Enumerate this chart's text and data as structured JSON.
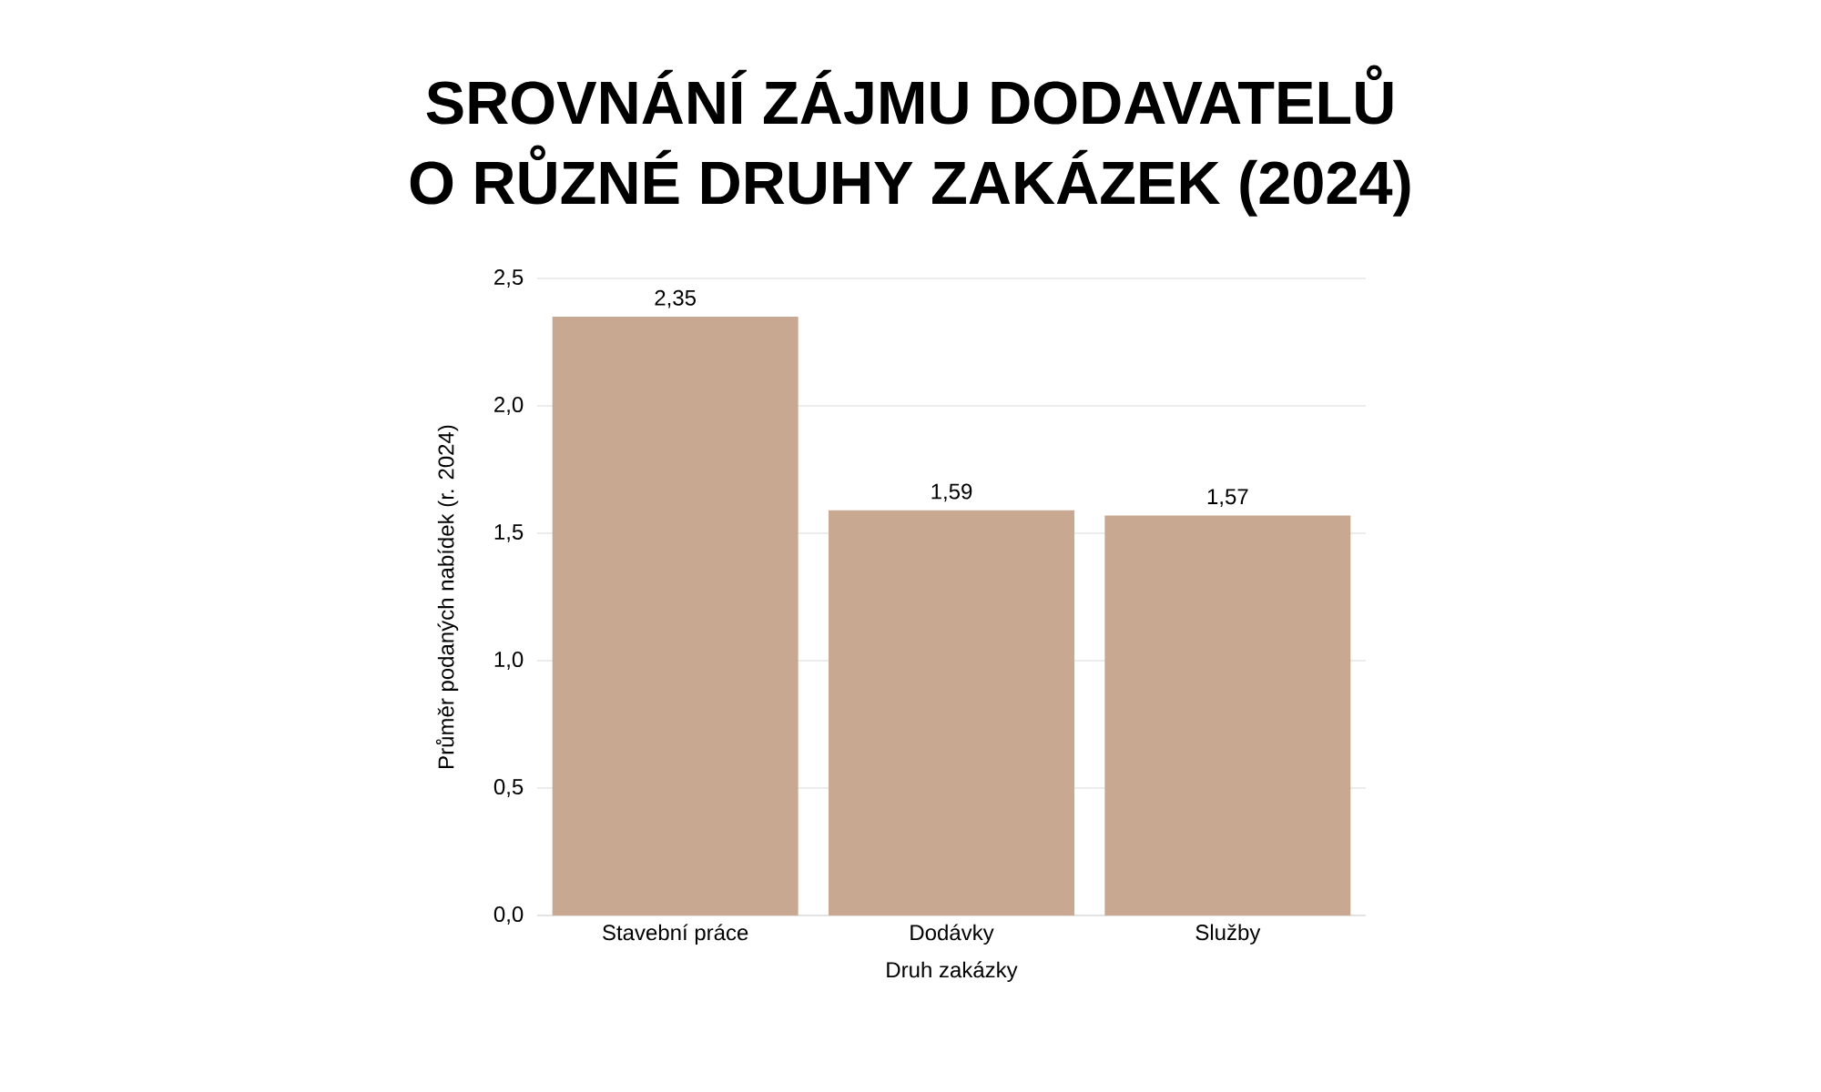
{
  "chart_data": {
    "type": "bar",
    "title": "SROVNÁNÍ ZÁJMU DODAVATELŮ\nO RŮZNÉ DRUHY ZAKÁZEK (2024)",
    "xlabel": "Druh zakázky",
    "ylabel": "Průměr podaných nabídek (r. 2024)",
    "categories": [
      "Stavební práce",
      "Dodávky",
      "Služby"
    ],
    "values": [
      2.35,
      1.59,
      1.57
    ],
    "value_labels": [
      "2,35",
      "1,59",
      "1,57"
    ],
    "color": "#c8a891",
    "ylim": [
      0,
      2.5
    ],
    "yticks": [
      {
        "value": 0,
        "label": "0,0"
      },
      {
        "value": 0.5,
        "label": "0,5"
      },
      {
        "value": 1,
        "label": "1,0"
      },
      {
        "value": 1.5,
        "label": "1,5"
      },
      {
        "value": 2,
        "label": "2,0"
      },
      {
        "value": 2.5,
        "label": "2,5"
      }
    ],
    "grid": "y"
  }
}
